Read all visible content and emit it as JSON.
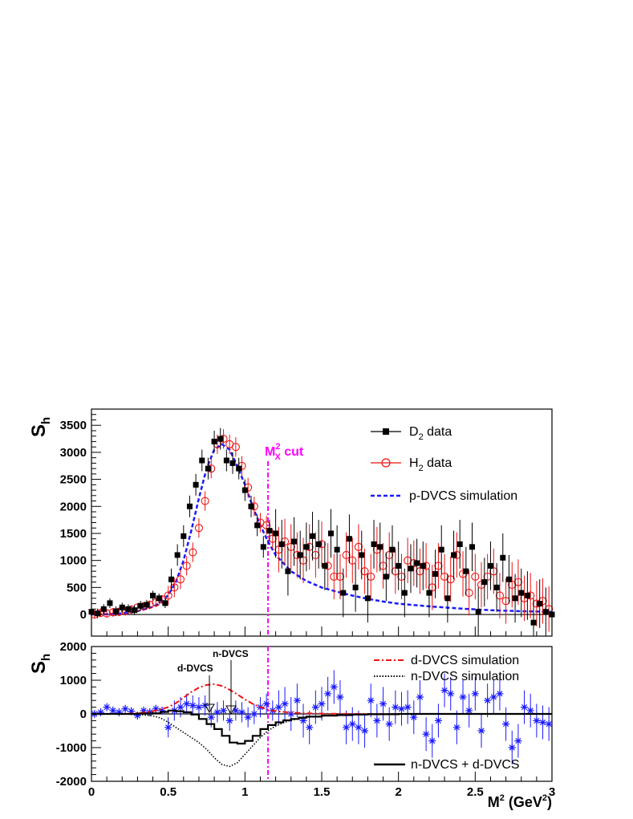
{
  "chart_data": [
    {
      "type": "scatter",
      "panel": "top",
      "ylabel": "S",
      "ylabel_sub": "h",
      "xlim": [
        0,
        3
      ],
      "ylim": [
        -400,
        3800
      ],
      "y_ticks": [
        "0",
        "500",
        "1000",
        "1500",
        "2000",
        "2500",
        "3000",
        "3500"
      ],
      "annotation": {
        "text": "M",
        "sup": "2",
        "sub": "X",
        "suffix": " cut",
        "x": 1.15,
        "color": "#ff00ff"
      },
      "legend": {
        "placement": "top-right",
        "entries": [
          {
            "pre": "D",
            "sub": "2",
            "post": " data",
            "marker": "filled-square",
            "color": "#000000"
          },
          {
            "pre": "H",
            "sub": "2",
            "post": " data",
            "marker": "open-circle",
            "color": "#ee1111"
          },
          {
            "pre": "p-DVCS simulation",
            "sub": "",
            "post": "",
            "marker": "dashed-line",
            "color": "#1a1aff"
          }
        ]
      },
      "series": [
        {
          "name": "D2 data",
          "color": "#000000",
          "marker": "filled-square",
          "x": [
            0.0,
            0.04,
            0.08,
            0.12,
            0.16,
            0.2,
            0.24,
            0.28,
            0.32,
            0.36,
            0.4,
            0.44,
            0.48,
            0.52,
            0.56,
            0.6,
            0.64,
            0.68,
            0.72,
            0.76,
            0.8,
            0.84,
            0.88,
            0.92,
            0.96,
            1.0,
            1.04,
            1.08,
            1.12,
            1.16,
            1.2,
            1.24,
            1.28,
            1.32,
            1.36,
            1.4,
            1.44,
            1.48,
            1.52,
            1.56,
            1.6,
            1.64,
            1.68,
            1.72,
            1.76,
            1.8,
            1.84,
            1.88,
            1.92,
            1.96,
            2.0,
            2.04,
            2.08,
            2.12,
            2.16,
            2.2,
            2.24,
            2.28,
            2.32,
            2.36,
            2.4,
            2.44,
            2.48,
            2.52,
            2.56,
            2.6,
            2.64,
            2.68,
            2.72,
            2.76,
            2.8,
            2.84,
            2.88,
            2.92,
            2.96,
            3.0
          ],
          "y": [
            50,
            20,
            100,
            210,
            60,
            130,
            100,
            80,
            160,
            180,
            350,
            300,
            210,
            650,
            1100,
            1450,
            2000,
            2400,
            2850,
            2700,
            3200,
            3250,
            2850,
            2800,
            2700,
            2300,
            2000,
            1650,
            1250,
            1550,
            1500,
            1300,
            800,
            1350,
            1100,
            1250,
            1450,
            1300,
            900,
            1500,
            1200,
            400,
            1400,
            500,
            1100,
            300,
            1300,
            1250,
            700,
            1200,
            900,
            400,
            850,
            950,
            900,
            400,
            750,
            1200,
            300,
            1100,
            1300,
            800,
            1250,
            50,
            600,
            900,
            500,
            1050,
            650,
            300,
            400,
            350,
            -150,
            200,
            50,
            0
          ]
        },
        {
          "name": "H2 data",
          "color": "#ee1111",
          "marker": "open-circle",
          "x": [
            0.02,
            0.06,
            0.1,
            0.14,
            0.18,
            0.22,
            0.26,
            0.3,
            0.34,
            0.38,
            0.42,
            0.46,
            0.5,
            0.54,
            0.58,
            0.62,
            0.66,
            0.7,
            0.74,
            0.78,
            0.82,
            0.86,
            0.9,
            0.94,
            0.98,
            1.02,
            1.06,
            1.1,
            1.14,
            1.18,
            1.22,
            1.26,
            1.3,
            1.34,
            1.38,
            1.42,
            1.46,
            1.5,
            1.54,
            1.58,
            1.62,
            1.66,
            1.7,
            1.74,
            1.78,
            1.82,
            1.86,
            1.9,
            1.94,
            1.98,
            2.02,
            2.06,
            2.1,
            2.14,
            2.18,
            2.22,
            2.26,
            2.3,
            2.34,
            2.38,
            2.42,
            2.46,
            2.5,
            2.54,
            2.58,
            2.62,
            2.66,
            2.7,
            2.74,
            2.78,
            2.82,
            2.86,
            2.9,
            2.94,
            2.98
          ],
          "y": [
            0,
            30,
            20,
            40,
            50,
            60,
            90,
            130,
            150,
            180,
            220,
            280,
            350,
            500,
            650,
            900,
            1150,
            1600,
            2100,
            2700,
            3150,
            3250,
            3150,
            3100,
            2750,
            2350,
            2000,
            1700,
            1650,
            1400,
            1200,
            1350,
            1250,
            1100,
            1000,
            1250,
            1100,
            1300,
            900,
            700,
            700,
            1100,
            1000,
            1250,
            800,
            700,
            1200,
            900,
            1100,
            800,
            700,
            1000,
            950,
            800,
            900,
            500,
            900,
            700,
            650,
            1100,
            750,
            400,
            700,
            550,
            700,
            800,
            350,
            250,
            550,
            600,
            300,
            350,
            200,
            250,
            100
          ]
        },
        {
          "name": "p-DVCS simulation",
          "color": "#1a1aff",
          "line": "dashed",
          "x": [
            0.0,
            0.1,
            0.2,
            0.3,
            0.4,
            0.45,
            0.5,
            0.55,
            0.6,
            0.65,
            0.7,
            0.75,
            0.8,
            0.85,
            0.9,
            0.95,
            1.0,
            1.05,
            1.1,
            1.15,
            1.2,
            1.3,
            1.4,
            1.5,
            1.6,
            1.7,
            1.8,
            1.9,
            2.0,
            2.2,
            2.4,
            2.6,
            2.8,
            3.0
          ],
          "y": [
            0,
            5,
            20,
            60,
            140,
            220,
            360,
            600,
            1000,
            1550,
            2150,
            2700,
            3050,
            3150,
            3050,
            2750,
            2400,
            2000,
            1650,
            1350,
            1100,
            800,
            620,
            500,
            420,
            350,
            290,
            240,
            200,
            150,
            110,
            80,
            60,
            50
          ]
        }
      ]
    },
    {
      "type": "scatter",
      "panel": "bottom",
      "ylabel": "S",
      "ylabel_sub": "h",
      "xlabel": "M",
      "xlabel_sup": "2",
      "xlabel_unit": " (GeV",
      "xlabel_unit_sup": "2",
      "xlabel_close": ")",
      "xlim": [
        0,
        3
      ],
      "ylim": [
        -2000,
        2000
      ],
      "x_ticks": [
        "0",
        "0.5",
        "1",
        "1.5",
        "2",
        "2.5",
        "3"
      ],
      "y_ticks": [
        "-2000",
        "-1000",
        "0",
        "1000",
        "2000"
      ],
      "arrow_labels": [
        {
          "text": "d-DVCS",
          "x": 0.78
        },
        {
          "text": "n-DVCS",
          "x": 0.9
        }
      ],
      "legend": {
        "entries": [
          {
            "label": "d-DVCS simulation",
            "style": "dash-dot",
            "color": "#ee1111"
          },
          {
            "label": "n-DVCS simulation",
            "style": "dotted",
            "color": "#000000"
          },
          {
            "label": "n-DVCS + d-DVCS",
            "style": "solid",
            "color": "#000000"
          }
        ]
      },
      "series": [
        {
          "name": "data difference",
          "color": "#1a1aff",
          "marker": "star",
          "x": [
            0.02,
            0.06,
            0.1,
            0.14,
            0.18,
            0.22,
            0.26,
            0.3,
            0.34,
            0.38,
            0.42,
            0.46,
            0.5,
            0.54,
            0.58,
            0.62,
            0.66,
            0.7,
            0.74,
            0.78,
            0.82,
            0.86,
            0.9,
            0.94,
            0.98,
            1.02,
            1.06,
            1.1,
            1.14,
            1.18,
            1.22,
            1.26,
            1.3,
            1.34,
            1.38,
            1.42,
            1.46,
            1.5,
            1.54,
            1.58,
            1.62,
            1.66,
            1.7,
            1.74,
            1.78,
            1.82,
            1.86,
            1.9,
            1.94,
            1.98,
            2.02,
            2.06,
            2.1,
            2.14,
            2.18,
            2.22,
            2.26,
            2.3,
            2.34,
            2.38,
            2.42,
            2.46,
            2.5,
            2.54,
            2.58,
            2.62,
            2.66,
            2.7,
            2.74,
            2.78,
            2.82,
            2.86,
            2.9,
            2.94,
            2.98
          ],
          "y": [
            0,
            50,
            200,
            100,
            50,
            150,
            80,
            -50,
            100,
            50,
            150,
            100,
            -400,
            100,
            200,
            300,
            250,
            200,
            250,
            -100,
            50,
            100,
            -200,
            100,
            50,
            -100,
            0,
            200,
            300,
            100,
            200,
            300,
            0,
            400,
            -200,
            -400,
            200,
            300,
            600,
            800,
            500,
            -400,
            -300,
            -400,
            -500,
            400,
            -200,
            300,
            -300,
            200,
            150,
            200,
            -100,
            500,
            -600,
            -800,
            -200,
            700,
            600,
            -400,
            500,
            100,
            600,
            -500,
            400,
            500,
            600,
            -300,
            -1000,
            -800,
            200,
            100,
            -200,
            -250,
            -300
          ]
        },
        {
          "name": "d-DVCS simulation",
          "color": "#ee1111",
          "line": "dash-dot",
          "x": [
            0.0,
            0.2,
            0.3,
            0.4,
            0.5,
            0.55,
            0.6,
            0.65,
            0.7,
            0.75,
            0.8,
            0.85,
            0.9,
            0.95,
            1.0,
            1.05,
            1.1,
            1.15,
            1.2,
            1.3,
            1.4,
            1.5,
            1.6,
            1.7,
            1.8,
            2.0
          ],
          "y": [
            0,
            0,
            20,
            80,
            200,
            320,
            480,
            650,
            780,
            860,
            880,
            830,
            720,
            580,
            430,
            300,
            200,
            130,
            80,
            40,
            20,
            10,
            5,
            2,
            0,
            0
          ]
        },
        {
          "name": "n-DVCS simulation",
          "color": "#000000",
          "line": "dotted",
          "x": [
            0.0,
            0.3,
            0.4,
            0.45,
            0.5,
            0.55,
            0.6,
            0.65,
            0.7,
            0.75,
            0.8,
            0.85,
            0.9,
            0.95,
            1.0,
            1.05,
            1.1,
            1.15,
            1.2,
            1.25,
            1.3,
            1.35,
            1.4,
            1.5,
            1.6,
            1.7,
            1.8,
            2.0,
            3.0
          ],
          "y": [
            0,
            -10,
            -60,
            -120,
            -250,
            -400,
            -550,
            -700,
            -850,
            -1050,
            -1300,
            -1500,
            -1560,
            -1450,
            -1200,
            -950,
            -700,
            -500,
            -360,
            -260,
            -190,
            -140,
            -100,
            -60,
            -40,
            -20,
            -10,
            0,
            0
          ]
        },
        {
          "name": "n-DVCS + d-DVCS",
          "color": "#000000",
          "line": "solid-step",
          "x": [
            0.0,
            0.3,
            0.4,
            0.45,
            0.5,
            0.55,
            0.6,
            0.65,
            0.7,
            0.75,
            0.8,
            0.85,
            0.9,
            0.95,
            1.0,
            1.05,
            1.1,
            1.15,
            1.2,
            1.25,
            1.3,
            1.35,
            1.4,
            1.5,
            1.6,
            1.7,
            1.8,
            2.0,
            3.0
          ],
          "y": [
            0,
            10,
            20,
            60,
            100,
            80,
            50,
            -20,
            -150,
            -300,
            -450,
            -650,
            -850,
            -880,
            -800,
            -650,
            -450,
            -330,
            -250,
            -190,
            -150,
            -110,
            -80,
            -50,
            -35,
            -20,
            -10,
            0,
            0
          ]
        }
      ]
    }
  ]
}
